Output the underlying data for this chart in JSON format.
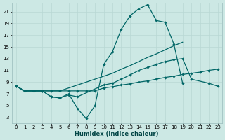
{
  "xlabel": "Humidex (Indice chaleur)",
  "bg_color": "#cce8e4",
  "grid_color": "#b8d8d4",
  "line_color": "#006666",
  "ylim": [
    2,
    22.5
  ],
  "xlim": [
    -0.5,
    23.5
  ],
  "yticks": [
    3,
    5,
    7,
    9,
    11,
    13,
    15,
    17,
    19,
    21
  ],
  "xticks": [
    0,
    1,
    2,
    3,
    4,
    5,
    6,
    7,
    8,
    9,
    10,
    11,
    12,
    13,
    14,
    15,
    16,
    17,
    18,
    19,
    20,
    21,
    22,
    23
  ],
  "line1_x": [
    0,
    1,
    2,
    3,
    4,
    5,
    6,
    7,
    8,
    9,
    10,
    11,
    12,
    13,
    14,
    15,
    16,
    17,
    18,
    19
  ],
  "line1_y": [
    8.3,
    7.5,
    7.5,
    7.5,
    6.5,
    6.3,
    7.0,
    4.5,
    2.8,
    5.0,
    12.0,
    14.2,
    18.0,
    20.3,
    21.5,
    22.2,
    19.5,
    19.2,
    15.5,
    8.8
  ],
  "line2_x": [
    0,
    1,
    2,
    3,
    4,
    5,
    6,
    7,
    8,
    9,
    10,
    11,
    12,
    13,
    14,
    15,
    16,
    17,
    18,
    19,
    20,
    21,
    22,
    23
  ],
  "line2_y": [
    8.3,
    7.5,
    7.5,
    7.5,
    7.5,
    7.5,
    7.5,
    7.5,
    7.5,
    7.5,
    8.0,
    8.2,
    8.5,
    8.7,
    9.0,
    9.2,
    9.5,
    9.8,
    10.0,
    10.3,
    10.5,
    10.7,
    11.0,
    11.2
  ],
  "line3_x": [
    0,
    1,
    2,
    3,
    4,
    5,
    6,
    7,
    8,
    9,
    10,
    11,
    12,
    13,
    14,
    15,
    16,
    17,
    18,
    19,
    20,
    21,
    22,
    23
  ],
  "line3_y": [
    8.3,
    7.5,
    7.5,
    7.5,
    7.5,
    7.5,
    8.0,
    8.5,
    9.0,
    9.5,
    10.0,
    10.5,
    11.2,
    11.8,
    12.5,
    13.2,
    13.8,
    14.5,
    15.2,
    15.8,
    null,
    null,
    null,
    null
  ],
  "line4_x": [
    0,
    1,
    2,
    3,
    4,
    5,
    6,
    7,
    8,
    9,
    10,
    11,
    12,
    13,
    14,
    15,
    16,
    17,
    18,
    19,
    20,
    21,
    22,
    23
  ],
  "line4_y": [
    8.3,
    7.5,
    7.5,
    7.5,
    6.5,
    6.3,
    6.8,
    6.5,
    null,
    null,
    8.5,
    8.8,
    9.5,
    10.2,
    11.0,
    11.5,
    12.0,
    12.5,
    12.8,
    13.0,
    9.5,
    null,
    8.8,
    8.3
  ]
}
